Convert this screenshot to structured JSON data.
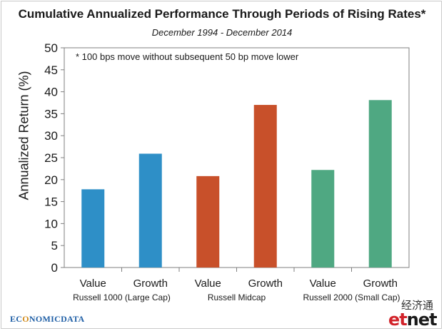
{
  "chart_data": {
    "type": "bar",
    "title": "Cumulative Annualized Performance Through Periods of Rising Rates*",
    "subtitle": "December 1994 - December 2014",
    "ylabel": "Annualized Return (%)",
    "ylim": [
      0,
      50
    ],
    "yticks": [
      0,
      5,
      10,
      15,
      20,
      25,
      30,
      35,
      40,
      45,
      50
    ],
    "grid": false,
    "annotation": "* 100 bps move without subsequent 50 bp move lower",
    "categories": [
      "Value",
      "Growth",
      "Value",
      "Growth",
      "Value",
      "Growth"
    ],
    "values": [
      17.8,
      25.9,
      20.8,
      37.0,
      22.2,
      38.1
    ],
    "bar_colors": [
      "#2e8fc7",
      "#2e8fc7",
      "#c8502a",
      "#c8502a",
      "#4fa882",
      "#4fa882"
    ],
    "groups": [
      {
        "label": "Russell 1000 (Large Cap)"
      },
      {
        "label": "Russell Midcap"
      },
      {
        "label": "Russell 2000 (Small Cap)"
      }
    ]
  },
  "logos": {
    "left_pre": "EC",
    "left_accent": "O",
    "left_post": "NOMICDATA",
    "right_cn": "经济通",
    "right_en_accent": "et",
    "right_en_rest": "net"
  }
}
